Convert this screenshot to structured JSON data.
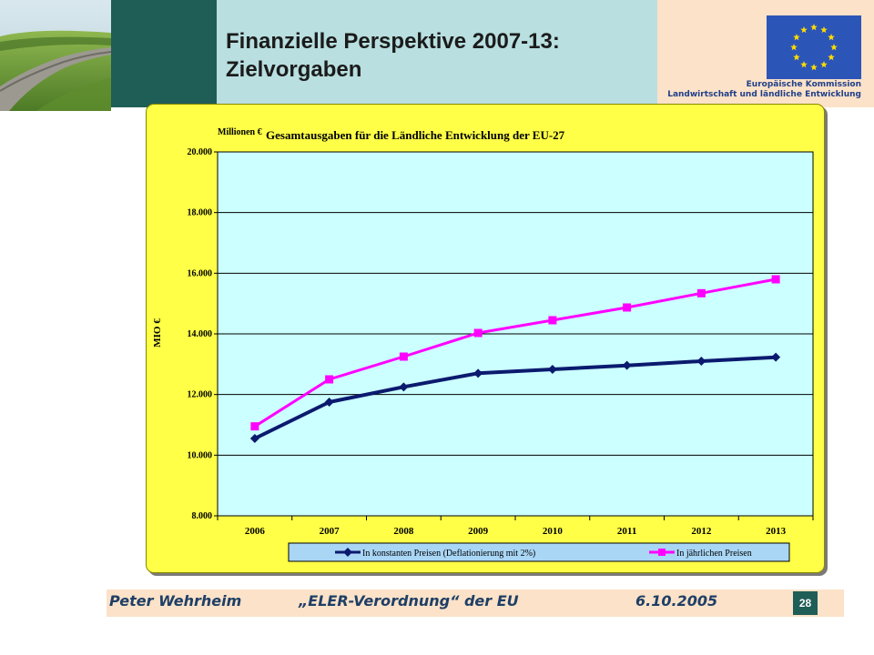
{
  "slide": {
    "title_line1": "Finanzielle Perspektive 2007-13:",
    "title_line2": "Zielvorgaben",
    "logo_line1": "Europäische Kommission",
    "logo_line2": "Landwirtschaft und ländliche Entwicklung",
    "author": "Peter Wehrheim",
    "subject": "„ELER-Verordnung“ der EU",
    "date": "6.10.2005",
    "page_number": "28",
    "colors": {
      "dark_band": "#1f5d57",
      "light_band": "#b9dfe0",
      "peach": "#fbe2c8",
      "chart_bg": "#ffff47",
      "plot_bg": "#ccffff"
    }
  },
  "chart_data": {
    "type": "line",
    "title": "Gesamtausgaben für die Ländliche Entwicklung der EU-27",
    "unit_label": "Millionen €",
    "ylabel": "MIO €",
    "xlabel": "",
    "categories": [
      "2006",
      "2007",
      "2008",
      "2009",
      "2010",
      "2011",
      "2012",
      "2013"
    ],
    "ylim": [
      8000,
      20000
    ],
    "yticks": [
      8000,
      10000,
      12000,
      14000,
      16000,
      18000,
      20000
    ],
    "ytick_labels": [
      "8.000",
      "10.000",
      "12.000",
      "14.000",
      "16.000",
      "18.000",
      "20.000"
    ],
    "grid": true,
    "legend_position": "bottom",
    "series": [
      {
        "name": "In konstanten Preisen (Deflationierung mit 2%)",
        "color": "#0b1a6e",
        "marker": "diamond",
        "values": [
          10550,
          11750,
          12250,
          12700,
          12830,
          12960,
          13100,
          13230
        ]
      },
      {
        "name": "In jährlichen Preisen",
        "color": "#ff00ff",
        "marker": "square",
        "values": [
          10950,
          12500,
          13250,
          14030,
          14450,
          14870,
          15340,
          15800
        ]
      }
    ]
  }
}
